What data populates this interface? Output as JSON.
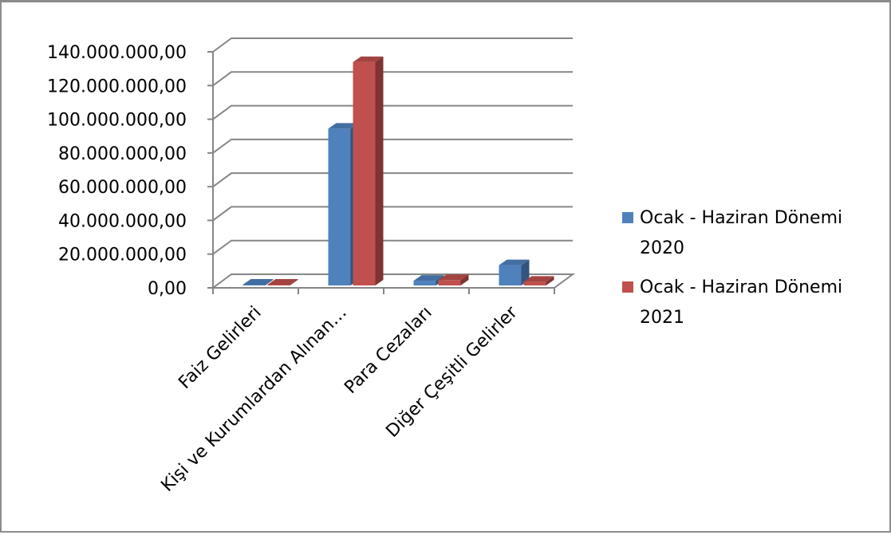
{
  "chart_data": {
    "type": "bar",
    "title": "",
    "xlabel": "",
    "ylabel": "",
    "categories": [
      "Faiz Gelirleri",
      "Kişi ve Kurumlardan Alınan…",
      "Para Cezaları",
      "Diğer Çeşitli Gelirler"
    ],
    "series": [
      {
        "name": "Ocak - Haziran Dönemi 2020",
        "color": "#4f81bd",
        "values": [
          120000,
          93000000,
          2800000,
          12000000
        ]
      },
      {
        "name": "Ocak - Haziran Dönemi 2021",
        "color": "#c0504d",
        "values": [
          90000,
          132500000,
          3200000,
          2200000
        ]
      }
    ],
    "ylim": [
      0,
      140000000
    ],
    "yticks": [
      "0,00",
      "20.000.000,00",
      "40.000.000,00",
      "60.000.000,00",
      "80.000.000,00",
      "100.000.000,00",
      "120.000.000,00",
      "140.000.000,00"
    ],
    "grid": true,
    "legend_position": "right",
    "legend": [
      {
        "line1": "Ocak - Haziran Dönemi",
        "line2": "2020"
      },
      {
        "line1": "Ocak - Haziran Dönemi",
        "line2": "2021"
      }
    ]
  }
}
